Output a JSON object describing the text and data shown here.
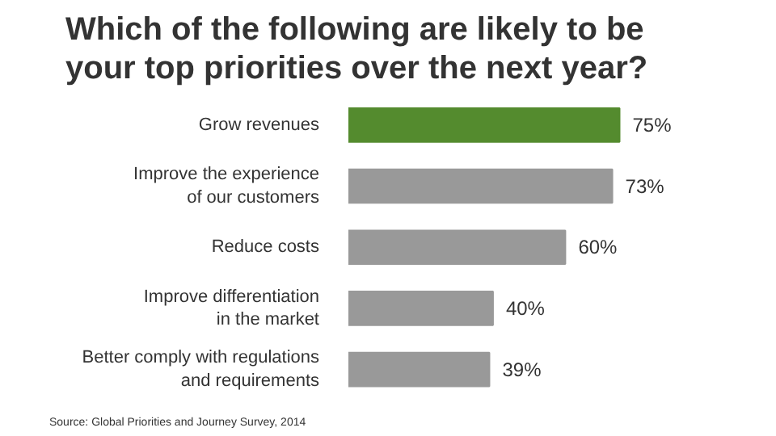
{
  "chart_data": {
    "type": "bar",
    "orientation": "horizontal",
    "title": "Which of the following are likely to be your top priorities over the next year?",
    "categories": [
      "Grow revenues",
      "Improve the experience\nof our customers",
      "Reduce costs",
      "Improve differentiation\nin the market",
      "Better comply with regulations\nand requirements"
    ],
    "values": [
      75,
      73,
      60,
      40,
      39
    ],
    "colors": [
      "#548b2e",
      "#999999",
      "#999999",
      "#999999",
      "#999999"
    ],
    "value_labels": [
      "75%",
      "73%",
      "60%",
      "40%",
      "39%"
    ],
    "annotations": [
      "Source: Global Priorities and Journey Survey, 2014"
    ],
    "grid": false
  }
}
